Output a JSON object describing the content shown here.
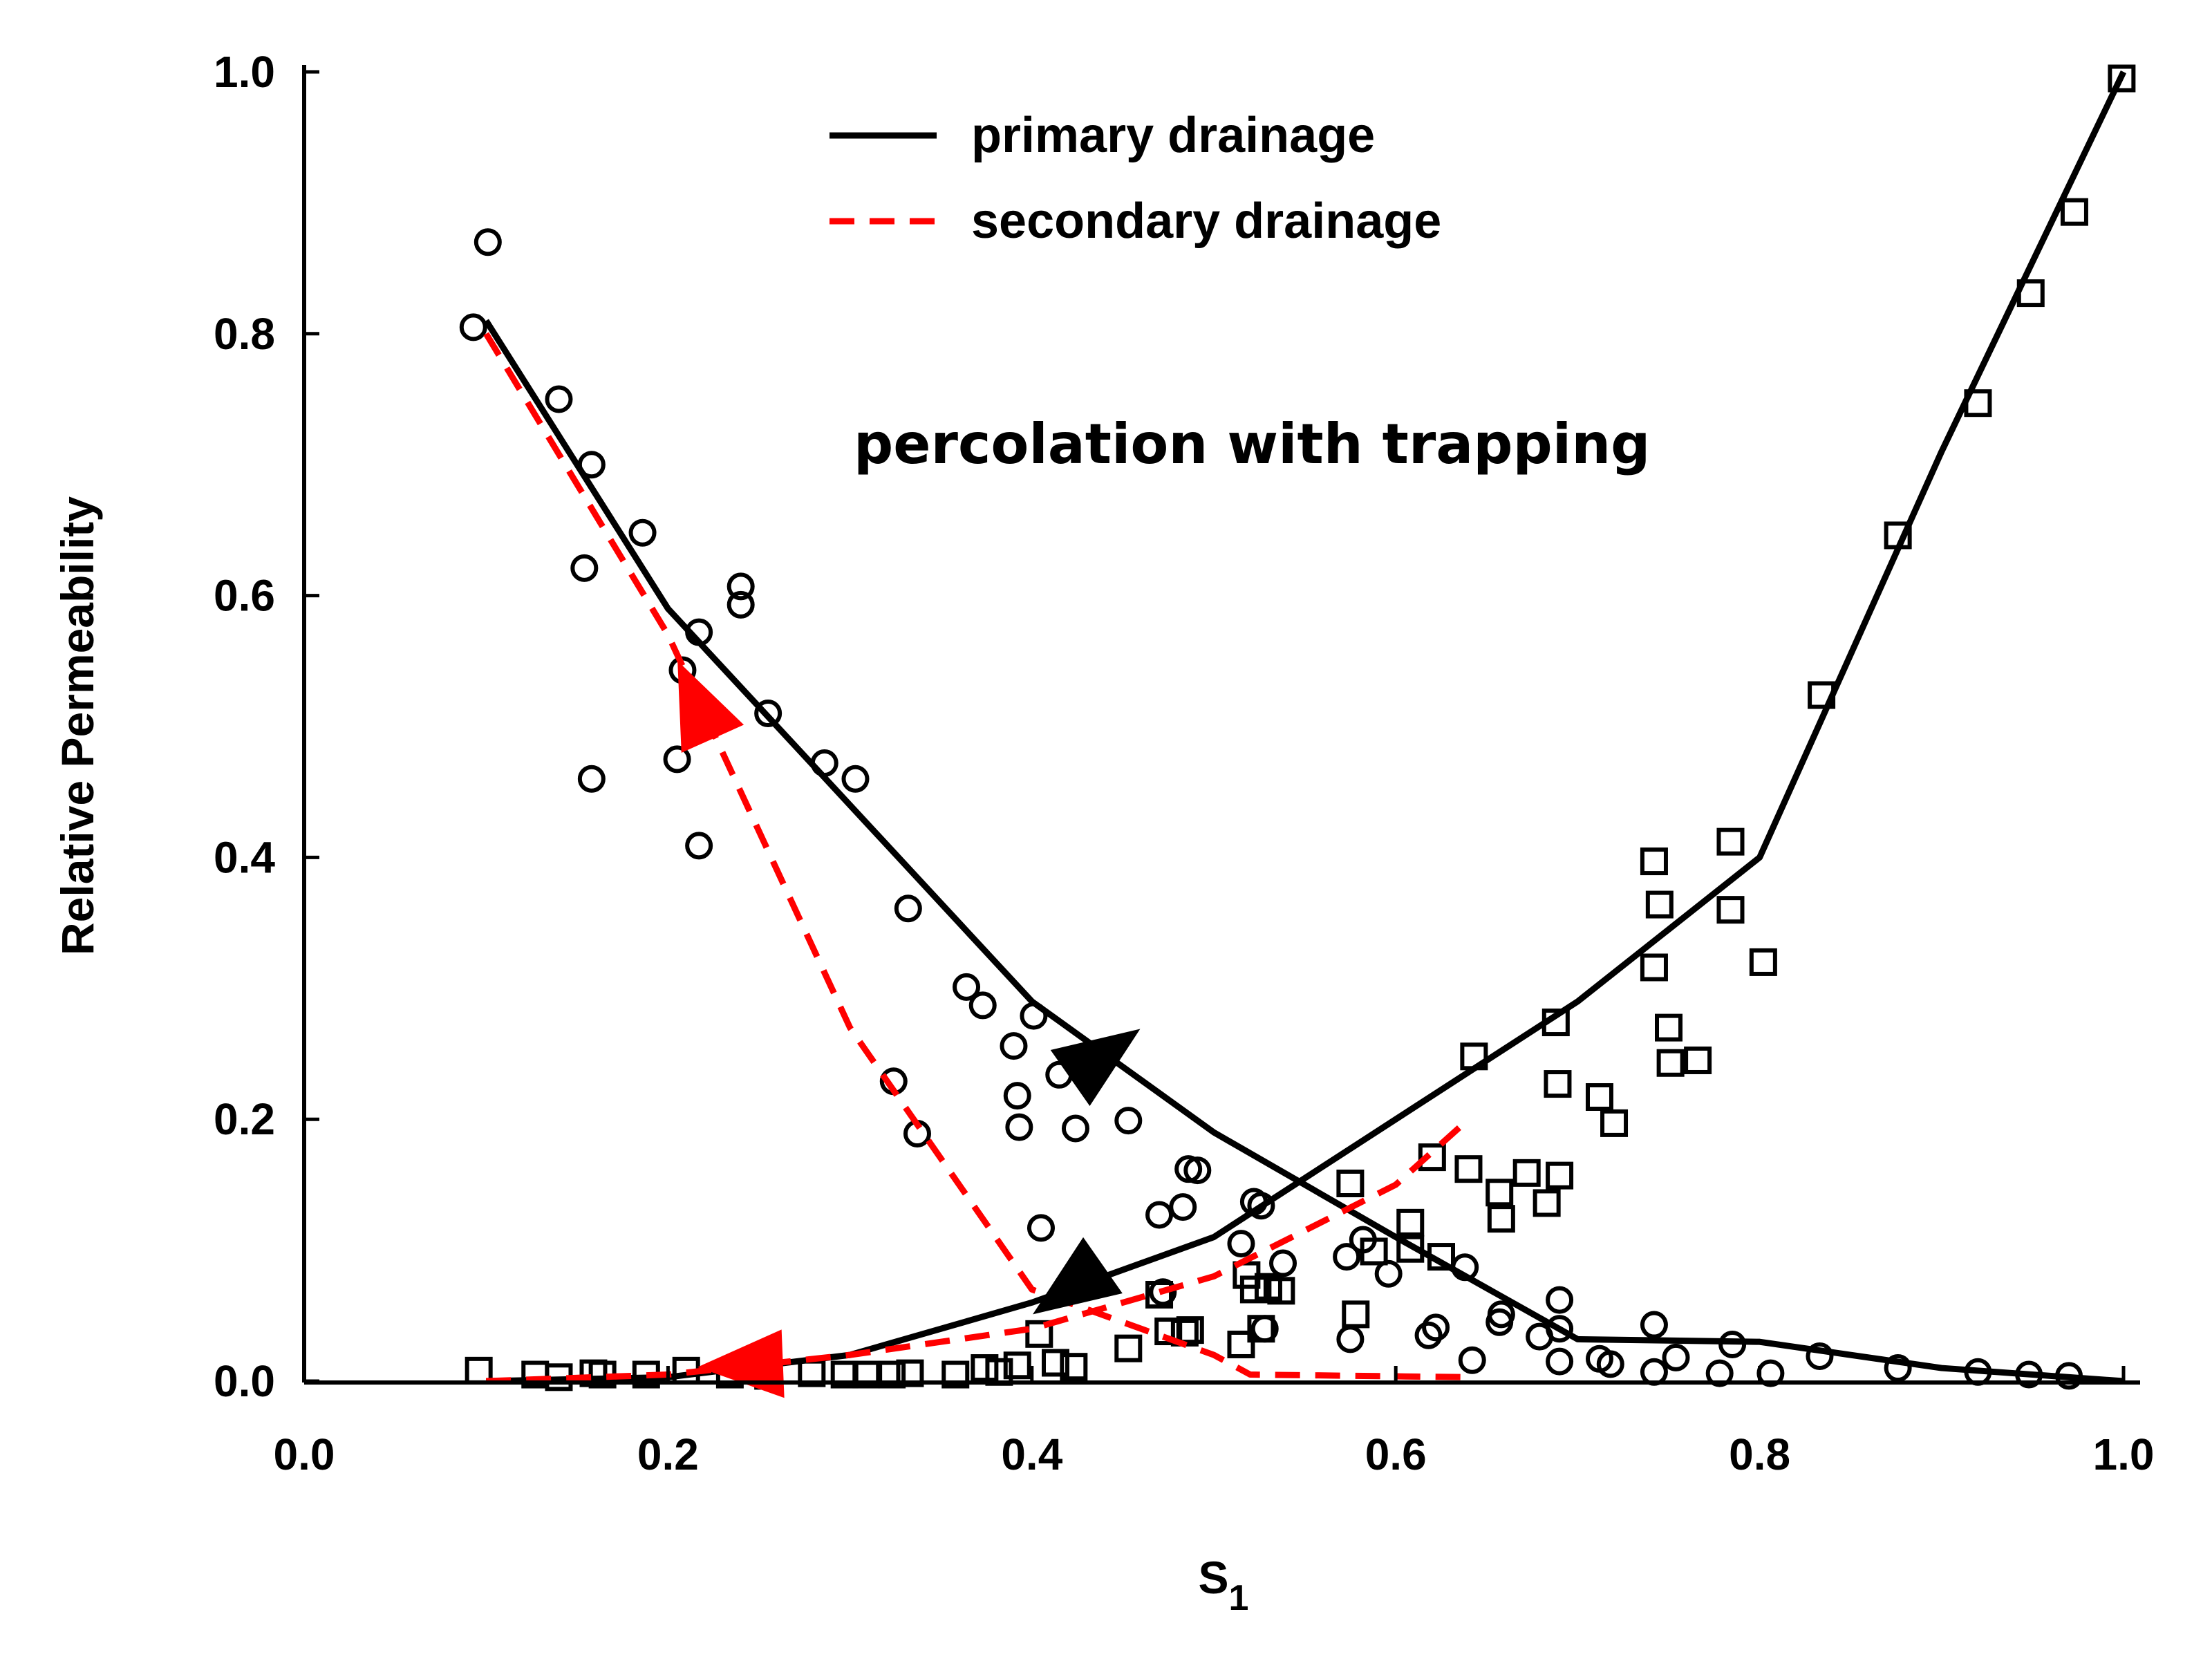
{
  "chart_data": {
    "type": "line",
    "annotation": "percolation with trapping",
    "xlabel": "S",
    "xlabel_subscript": "1",
    "ylabel": "Relative Permeability",
    "xlim": [
      0.0,
      1.0
    ],
    "ylim": [
      0.0,
      1.0
    ],
    "xticks": [
      "0.0",
      "0.2",
      "0.4",
      "0.6",
      "0.8",
      "1.0"
    ],
    "yticks": [
      "0.0",
      "0.2",
      "0.4",
      "0.6",
      "0.8",
      "1.0"
    ],
    "legend": [
      {
        "label": "primary drainage",
        "style": "solid",
        "color": "#000000"
      },
      {
        "label": "secondary drainage",
        "style": "dashed",
        "color": "#ff0000"
      }
    ],
    "series": [
      {
        "name": "primary drainage (decreasing)",
        "style": "solid",
        "color": "#000000",
        "x": [
          0.1,
          0.2,
          0.3,
          0.4,
          0.5,
          0.6,
          0.7,
          0.8,
          0.9,
          1.0
        ],
        "y": [
          0.81,
          0.59,
          0.44,
          0.29,
          0.19,
          0.11,
          0.032,
          0.03,
          0.01,
          0.0
        ]
      },
      {
        "name": "primary drainage (increasing)",
        "style": "solid",
        "color": "#000000",
        "x": [
          0.1,
          0.2,
          0.3,
          0.4,
          0.5,
          0.6,
          0.7,
          0.8,
          0.9,
          1.0
        ],
        "y": [
          0.0,
          0.003,
          0.02,
          0.06,
          0.11,
          0.2,
          0.29,
          0.4,
          0.71,
          1.0
        ]
      },
      {
        "name": "secondary drainage (decreasing)",
        "style": "dashed",
        "color": "#ff0000",
        "x": [
          0.1,
          0.2,
          0.3,
          0.4,
          0.5,
          0.52,
          0.64
        ],
        "y": [
          0.8,
          0.57,
          0.27,
          0.07,
          0.02,
          0.005,
          0.003
        ]
      },
      {
        "name": "secondary drainage (increasing)",
        "style": "dashed",
        "color": "#ff0000",
        "x": [
          0.1,
          0.2,
          0.3,
          0.4,
          0.5,
          0.6,
          0.64
        ],
        "y": [
          0.0,
          0.005,
          0.02,
          0.04,
          0.08,
          0.15,
          0.2
        ]
      }
    ],
    "markers": {
      "circles": [
        [
          0.093,
          0.805
        ],
        [
          0.101,
          0.87
        ],
        [
          0.14,
          0.75
        ],
        [
          0.154,
          0.621
        ],
        [
          0.158,
          0.7
        ],
        [
          0.158,
          0.46
        ],
        [
          0.186,
          0.648
        ],
        [
          0.205,
          0.475
        ],
        [
          0.208,
          0.543
        ],
        [
          0.217,
          0.572
        ],
        [
          0.217,
          0.409
        ],
        [
          0.24,
          0.607
        ],
        [
          0.24,
          0.593
        ],
        [
          0.255,
          0.51
        ],
        [
          0.286,
          0.472
        ],
        [
          0.303,
          0.46
        ],
        [
          0.324,
          0.229
        ],
        [
          0.332,
          0.361
        ],
        [
          0.337,
          0.189
        ],
        [
          0.364,
          0.301
        ],
        [
          0.373,
          0.287
        ],
        [
          0.39,
          0.256
        ],
        [
          0.392,
          0.218
        ],
        [
          0.393,
          0.194
        ],
        [
          0.401,
          0.279
        ],
        [
          0.405,
          0.117
        ],
        [
          0.415,
          0.234
        ],
        [
          0.424,
          0.193
        ],
        [
          0.434,
          0.241
        ],
        [
          0.453,
          0.199
        ],
        [
          0.47,
          0.127
        ],
        [
          0.472,
          0.068
        ],
        [
          0.483,
          0.133
        ],
        [
          0.486,
          0.162
        ],
        [
          0.491,
          0.161
        ],
        [
          0.515,
          0.105
        ],
        [
          0.522,
          0.137
        ],
        [
          0.526,
          0.134
        ],
        [
          0.528,
          0.04
        ],
        [
          0.538,
          0.09
        ],
        [
          0.573,
          0.095
        ],
        [
          0.575,
          0.032
        ],
        [
          0.582,
          0.108
        ],
        [
          0.596,
          0.082
        ],
        [
          0.618,
          0.035
        ],
        [
          0.622,
          0.041
        ],
        [
          0.638,
          0.087
        ],
        [
          0.642,
          0.016
        ],
        [
          0.657,
          0.045
        ],
        [
          0.658,
          0.051
        ],
        [
          0.679,
          0.034
        ],
        [
          0.69,
          0.062
        ],
        [
          0.69,
          0.04
        ],
        [
          0.69,
          0.015
        ],
        [
          0.712,
          0.017
        ],
        [
          0.718,
          0.013
        ],
        [
          0.742,
          0.043
        ],
        [
          0.742,
          0.007
        ],
        [
          0.754,
          0.018
        ],
        [
          0.778,
          0.006
        ],
        [
          0.785,
          0.028
        ],
        [
          0.806,
          0.006
        ],
        [
          0.833,
          0.019
        ],
        [
          0.876,
          0.01
        ],
        [
          0.92,
          0.007
        ],
        [
          0.948,
          0.005
        ],
        [
          0.97,
          0.004
        ]
      ],
      "squares": [
        [
          0.096,
          0.008
        ],
        [
          0.127,
          0.005
        ],
        [
          0.14,
          0.003
        ],
        [
          0.159,
          0.006
        ],
        [
          0.164,
          0.005
        ],
        [
          0.188,
          0.005
        ],
        [
          0.21,
          0.008
        ],
        [
          0.234,
          0.005
        ],
        [
          0.255,
          0.004
        ],
        [
          0.279,
          0.006
        ],
        [
          0.297,
          0.005
        ],
        [
          0.309,
          0.005
        ],
        [
          0.323,
          0.005
        ],
        [
          0.333,
          0.006
        ],
        [
          0.358,
          0.005
        ],
        [
          0.374,
          0.01
        ],
        [
          0.382,
          0.007
        ],
        [
          0.392,
          0.012
        ],
        [
          0.404,
          0.036
        ],
        [
          0.413,
          0.014
        ],
        [
          0.423,
          0.011
        ],
        [
          0.453,
          0.025
        ],
        [
          0.47,
          0.066
        ],
        [
          0.475,
          0.038
        ],
        [
          0.484,
          0.037
        ],
        [
          0.487,
          0.039
        ],
        [
          0.515,
          0.028
        ],
        [
          0.518,
          0.081
        ],
        [
          0.522,
          0.07
        ],
        [
          0.526,
          0.04
        ],
        [
          0.53,
          0.072
        ],
        [
          0.537,
          0.069
        ],
        [
          0.575,
          0.151
        ],
        [
          0.578,
          0.051
        ],
        [
          0.588,
          0.099
        ],
        [
          0.608,
          0.101
        ],
        [
          0.608,
          0.121
        ],
        [
          0.62,
          0.171
        ],
        [
          0.625,
          0.095
        ],
        [
          0.64,
          0.162
        ],
        [
          0.643,
          0.248
        ],
        [
          0.657,
          0.144
        ],
        [
          0.658,
          0.124
        ],
        [
          0.672,
          0.159
        ],
        [
          0.683,
          0.136
        ],
        [
          0.688,
          0.274
        ],
        [
          0.689,
          0.227
        ],
        [
          0.69,
          0.157
        ],
        [
          0.712,
          0.217
        ],
        [
          0.72,
          0.197
        ],
        [
          0.742,
          0.397
        ],
        [
          0.742,
          0.316
        ],
        [
          0.745,
          0.364
        ],
        [
          0.75,
          0.27
        ],
        [
          0.751,
          0.243
        ],
        [
          0.766,
          0.245
        ],
        [
          0.784,
          0.412
        ],
        [
          0.784,
          0.36
        ],
        [
          0.802,
          0.32
        ],
        [
          0.834,
          0.524
        ],
        [
          0.876,
          0.646
        ],
        [
          0.92,
          0.747
        ],
        [
          0.949,
          0.831
        ],
        [
          0.973,
          0.893
        ],
        [
          0.999,
          0.995
        ]
      ]
    },
    "arrows": [
      {
        "series": "primary drainage (decreasing)",
        "color": "#000000",
        "at": [
          0.44,
          0.25
        ],
        "direction": "up-right"
      },
      {
        "series": "primary drainage (increasing)",
        "color": "#000000",
        "at": [
          0.42,
          0.07
        ],
        "direction": "down-left"
      },
      {
        "series": "secondary drainage (decreasing)",
        "color": "#ff0000",
        "at": [
          0.215,
          0.52
        ],
        "direction": "up-left"
      },
      {
        "series": "secondary drainage (increasing)",
        "color": "#ff0000",
        "at": [
          0.24,
          0.012
        ],
        "direction": "left"
      }
    ]
  }
}
